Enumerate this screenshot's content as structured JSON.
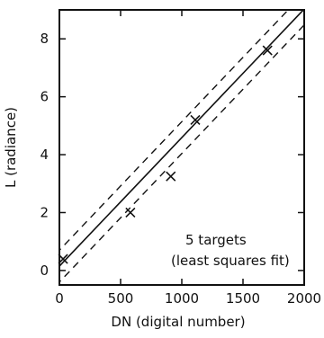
{
  "chart_data": {
    "type": "scatter",
    "xlabel": "DN (digital number)",
    "ylabel": "L (radiance)",
    "xlim": [
      0,
      2000
    ],
    "ylim": [
      -0.5,
      9
    ],
    "xticks": [
      0,
      500,
      1000,
      1500,
      2000
    ],
    "yticks": [
      0,
      2,
      4,
      6,
      8
    ],
    "points": [
      {
        "x": 30,
        "y": 0.4
      },
      {
        "x": 580,
        "y": 2.0
      },
      {
        "x": 910,
        "y": 3.25
      },
      {
        "x": 1110,
        "y": 5.2
      },
      {
        "x": 1700,
        "y": 7.6
      }
    ],
    "fit": {
      "slope": 0.00444,
      "intercept": 0.15,
      "style": "solid"
    },
    "confidence_band": {
      "style": "dashed",
      "upper_offset": 0.55,
      "lower_offset": -0.55
    },
    "annotation": [
      "5 targets",
      "(least squares fit)"
    ],
    "grid": false,
    "legend": "none"
  }
}
